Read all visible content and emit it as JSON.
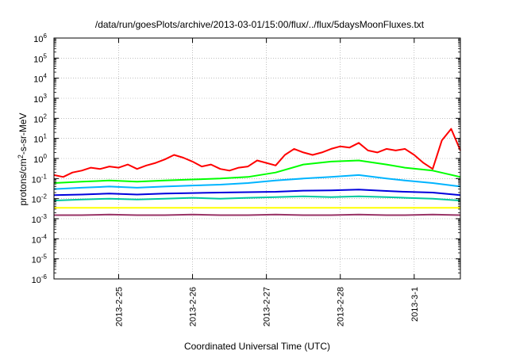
{
  "chart_data": {
    "type": "line",
    "title": "/data/run/goesPlots/archive/2013-03-01/15:00/flux/../flux/5daysMoonFluxes.txt",
    "xlabel": "Coordinated Universal Time (UTC)",
    "ylabel": {
      "pre": "protons/cm",
      "sup": "2",
      "post": "-s-sr-MeV"
    },
    "yscale": "log",
    "ylim": [
      1e-06,
      1000000.0
    ],
    "xlim": [
      "2013-02-24T03:00",
      "2013-03-01T15:00"
    ],
    "grid": true,
    "legend": "none",
    "x_ticks": [
      {
        "label": "2013-2-25",
        "date": "2013-02-25T00:00"
      },
      {
        "label": "2013-2-26",
        "date": "2013-02-26T00:00"
      },
      {
        "label": "2013-2-27",
        "date": "2013-02-27T00:00"
      },
      {
        "label": "2013-2-28",
        "date": "2013-02-28T00:00"
      },
      {
        "label": "2013-3-1",
        "date": "2013-03-01T00:00"
      }
    ],
    "y_ticks": [
      {
        "base": "10",
        "exp": "6"
      },
      {
        "base": "10",
        "exp": "5"
      },
      {
        "base": "10",
        "exp": "4"
      },
      {
        "base": "10",
        "exp": "3"
      },
      {
        "base": "10",
        "exp": "2"
      },
      {
        "base": "10",
        "exp": "1"
      },
      {
        "base": "10",
        "exp": "0"
      },
      {
        "base": "10",
        "exp": "-1"
      },
      {
        "base": "10",
        "exp": "-2"
      },
      {
        "base": "10",
        "exp": "-3"
      },
      {
        "base": "10",
        "exp": "-4"
      },
      {
        "base": "10",
        "exp": "-5"
      },
      {
        "base": "10",
        "exp": "-6"
      }
    ],
    "series": [
      {
        "color": "#ff0000",
        "x": [
          "2013-02-24T03:00",
          "2013-02-24T06:00",
          "2013-02-24T09:00",
          "2013-02-24T12:00",
          "2013-02-24T15:00",
          "2013-02-24T18:00",
          "2013-02-24T21:00",
          "2013-02-25T00:00",
          "2013-02-25T03:00",
          "2013-02-25T06:00",
          "2013-02-25T09:00",
          "2013-02-25T12:00",
          "2013-02-25T15:00",
          "2013-02-25T18:00",
          "2013-02-25T21:00",
          "2013-02-26T00:00",
          "2013-02-26T03:00",
          "2013-02-26T06:00",
          "2013-02-26T09:00",
          "2013-02-26T12:00",
          "2013-02-26T15:00",
          "2013-02-26T18:00",
          "2013-02-26T21:00",
          "2013-02-27T00:00",
          "2013-02-27T03:00",
          "2013-02-27T06:00",
          "2013-02-27T09:00",
          "2013-02-27T12:00",
          "2013-02-27T15:00",
          "2013-02-27T18:00",
          "2013-02-27T21:00",
          "2013-02-28T00:00",
          "2013-02-28T03:00",
          "2013-02-28T06:00",
          "2013-02-28T09:00",
          "2013-02-28T12:00",
          "2013-02-28T15:00",
          "2013-02-28T18:00",
          "2013-02-28T21:00",
          "2013-03-01T00:00",
          "2013-03-01T03:00",
          "2013-03-01T06:00",
          "2013-03-01T09:00",
          "2013-03-01T12:00",
          "2013-03-01T15:00"
        ],
        "y": [
          0.15,
          0.12,
          0.2,
          0.25,
          0.35,
          0.3,
          0.4,
          0.35,
          0.5,
          0.3,
          0.45,
          0.6,
          0.9,
          1.5,
          1.1,
          0.7,
          0.4,
          0.5,
          0.3,
          0.25,
          0.35,
          0.4,
          0.8,
          0.6,
          0.45,
          1.5,
          3,
          2,
          1.5,
          2,
          3,
          4,
          3.5,
          6,
          2.5,
          2,
          3,
          2.5,
          3,
          1.5,
          0.6,
          0.3,
          8,
          30,
          2.5
        ]
      },
      {
        "color": "#00ff00",
        "x": [
          "2013-02-24T03:00",
          "2013-02-24T12:00",
          "2013-02-24T21:00",
          "2013-02-25T06:00",
          "2013-02-25T15:00",
          "2013-02-26T00:00",
          "2013-02-26T09:00",
          "2013-02-26T18:00",
          "2013-02-27T03:00",
          "2013-02-27T12:00",
          "2013-02-27T21:00",
          "2013-02-28T06:00",
          "2013-02-28T15:00",
          "2013-02-28T21:00",
          "2013-03-01T06:00",
          "2013-03-01T15:00"
        ],
        "y": [
          0.06,
          0.07,
          0.08,
          0.07,
          0.08,
          0.09,
          0.1,
          0.12,
          0.2,
          0.5,
          0.7,
          0.8,
          0.5,
          0.35,
          0.25,
          0.12
        ]
      },
      {
        "color": "#00b4ff",
        "x": [
          "2013-02-24T03:00",
          "2013-02-24T12:00",
          "2013-02-24T21:00",
          "2013-02-25T06:00",
          "2013-02-25T15:00",
          "2013-02-26T00:00",
          "2013-02-26T09:00",
          "2013-02-26T18:00",
          "2013-02-27T03:00",
          "2013-02-27T12:00",
          "2013-02-27T21:00",
          "2013-02-28T06:00",
          "2013-02-28T15:00",
          "2013-02-28T21:00",
          "2013-03-01T06:00",
          "2013-03-01T15:00"
        ],
        "y": [
          0.03,
          0.035,
          0.04,
          0.035,
          0.04,
          0.045,
          0.05,
          0.06,
          0.08,
          0.1,
          0.12,
          0.15,
          0.1,
          0.08,
          0.06,
          0.04
        ]
      },
      {
        "color": "#0000dd",
        "x": [
          "2013-02-24T03:00",
          "2013-02-24T12:00",
          "2013-02-24T21:00",
          "2013-02-25T06:00",
          "2013-02-25T15:00",
          "2013-02-26T00:00",
          "2013-02-26T09:00",
          "2013-02-26T18:00",
          "2013-02-27T03:00",
          "2013-02-27T12:00",
          "2013-02-27T21:00",
          "2013-02-28T06:00",
          "2013-02-28T15:00",
          "2013-02-28T21:00",
          "2013-03-01T06:00",
          "2013-03-01T15:00"
        ],
        "y": [
          0.015,
          0.016,
          0.018,
          0.016,
          0.018,
          0.019,
          0.02,
          0.021,
          0.022,
          0.025,
          0.026,
          0.028,
          0.024,
          0.022,
          0.02,
          0.015
        ]
      },
      {
        "color": "#00c8a0",
        "x": [
          "2013-02-24T03:00",
          "2013-02-24T12:00",
          "2013-02-24T21:00",
          "2013-02-25T06:00",
          "2013-02-25T15:00",
          "2013-02-26T00:00",
          "2013-02-26T09:00",
          "2013-02-26T18:00",
          "2013-02-27T03:00",
          "2013-02-27T12:00",
          "2013-02-27T21:00",
          "2013-02-28T06:00",
          "2013-02-28T15:00",
          "2013-02-28T21:00",
          "2013-03-01T06:00",
          "2013-03-01T15:00"
        ],
        "y": [
          0.008,
          0.009,
          0.01,
          0.009,
          0.01,
          0.011,
          0.01,
          0.011,
          0.012,
          0.013,
          0.012,
          0.013,
          0.012,
          0.011,
          0.01,
          0.008
        ]
      },
      {
        "color": "#ffff00",
        "x": [
          "2013-02-24T03:00",
          "2013-02-24T12:00",
          "2013-02-24T21:00",
          "2013-02-25T06:00",
          "2013-02-25T15:00",
          "2013-02-26T00:00",
          "2013-02-26T09:00",
          "2013-02-26T18:00",
          "2013-02-27T03:00",
          "2013-02-27T12:00",
          "2013-02-27T21:00",
          "2013-02-28T06:00",
          "2013-02-28T15:00",
          "2013-02-28T21:00",
          "2013-03-01T06:00",
          "2013-03-01T15:00"
        ],
        "y": [
          0.0035,
          0.0035,
          0.0035,
          0.0035,
          0.0035,
          0.0035,
          0.0035,
          0.0035,
          0.0035,
          0.0035,
          0.0035,
          0.0035,
          0.0035,
          0.0035,
          0.0035,
          0.0035
        ]
      },
      {
        "color": "#993366",
        "x": [
          "2013-02-24T03:00",
          "2013-02-24T12:00",
          "2013-02-24T21:00",
          "2013-02-25T06:00",
          "2013-02-25T15:00",
          "2013-02-26T00:00",
          "2013-02-26T09:00",
          "2013-02-26T18:00",
          "2013-02-27T03:00",
          "2013-02-27T12:00",
          "2013-02-27T21:00",
          "2013-02-28T06:00",
          "2013-02-28T15:00",
          "2013-02-28T21:00",
          "2013-03-01T06:00",
          "2013-03-01T15:00"
        ],
        "y": [
          0.0015,
          0.0015,
          0.0016,
          0.0015,
          0.0015,
          0.0016,
          0.0015,
          0.0015,
          0.0016,
          0.0015,
          0.0015,
          0.0016,
          0.0015,
          0.0015,
          0.0016,
          0.0015
        ]
      }
    ]
  }
}
